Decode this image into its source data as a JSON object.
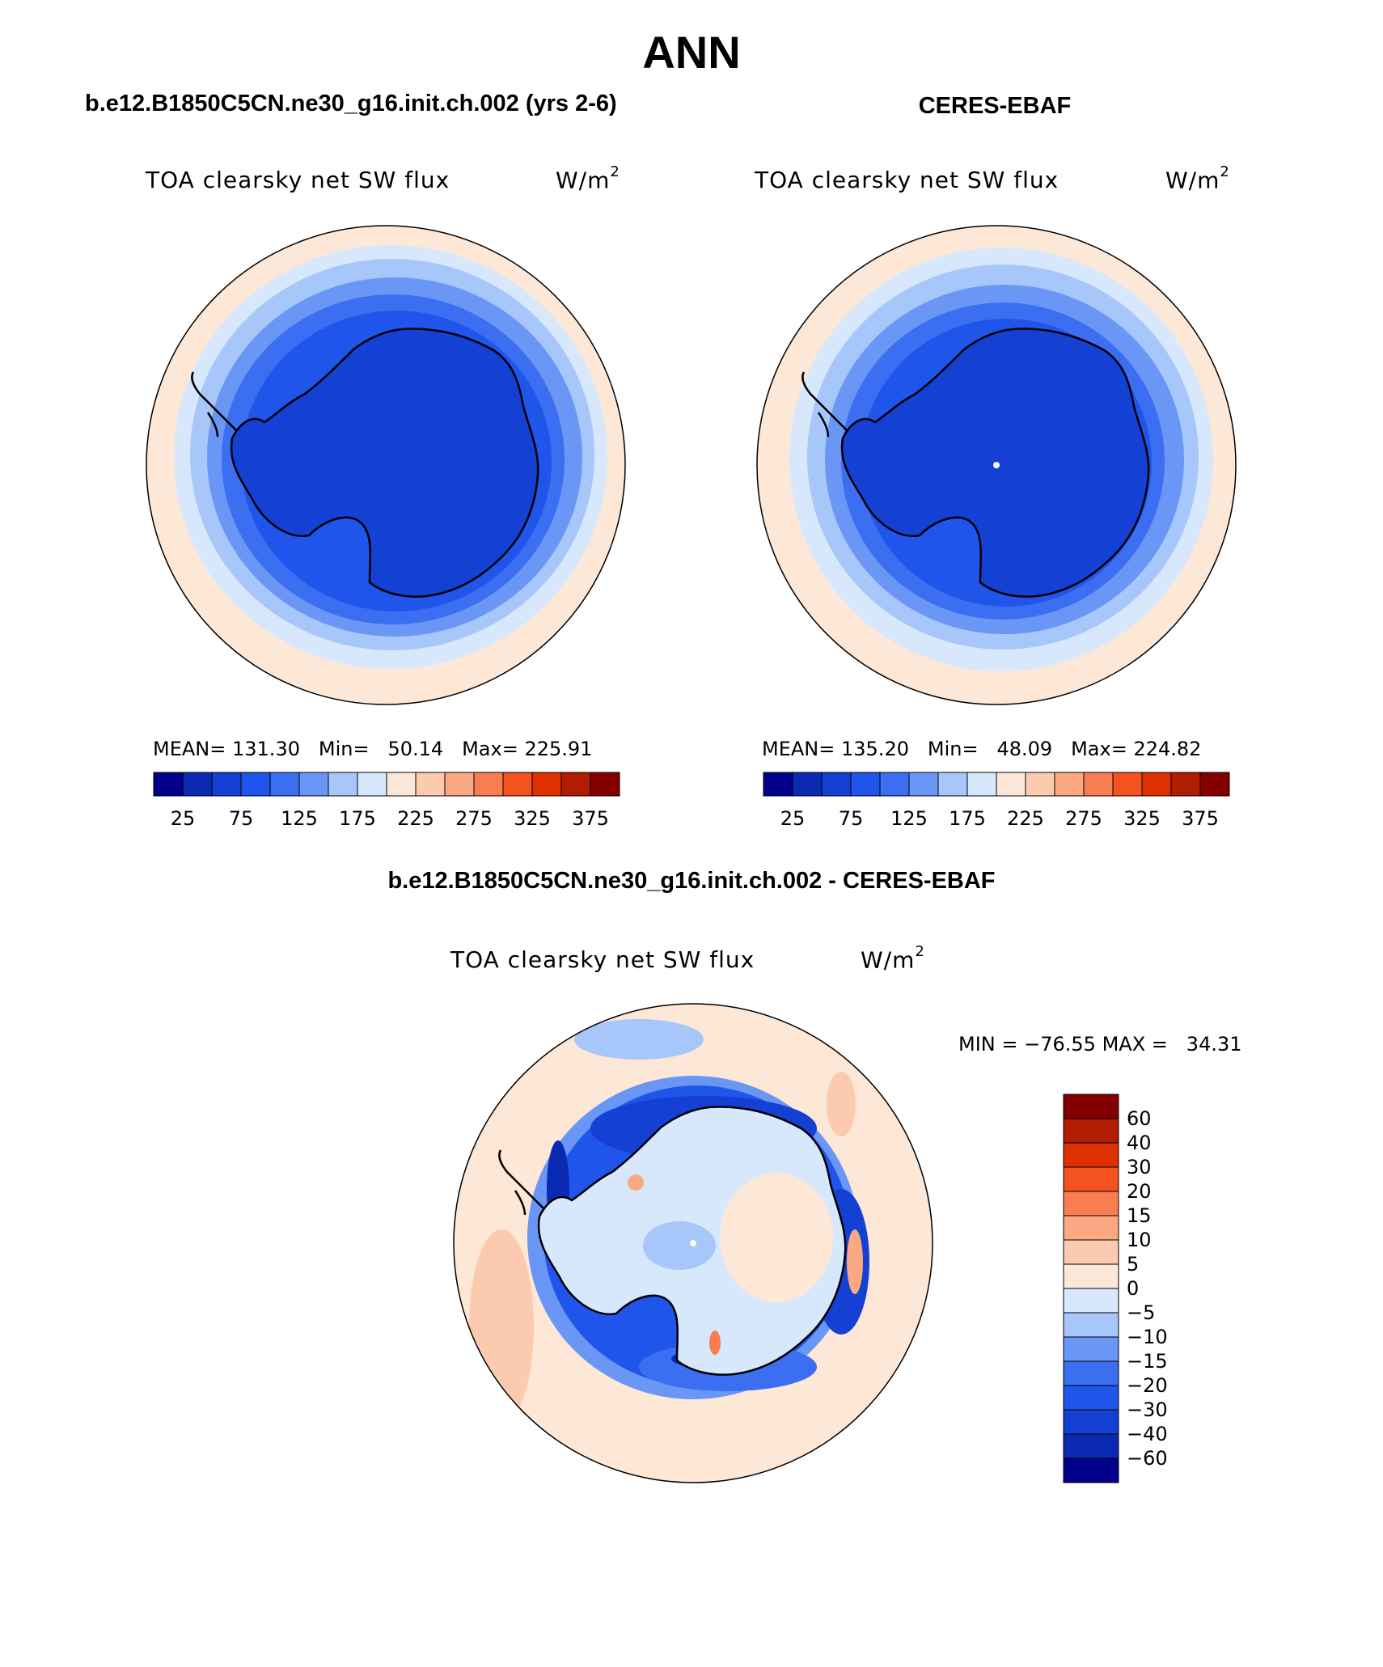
{
  "figure": {
    "season": "ANN",
    "model_case": "b.e12.B1850C5CN.ne30_g16.init.ch.002 (yrs 2-6)",
    "obs_name": "CERES-EBAF",
    "difference_title": "b.e12.B1850C5CN.ne30_g16.init.ch.002 - CERES-EBAF"
  },
  "panels": {
    "model": {
      "variable": "TOA clearsky net SW flux",
      "units_base": "W/m",
      "units_exp": "2",
      "mean_label": "MEAN=",
      "mean": "131.30",
      "min_label": "Min=",
      "min": "50.14",
      "max_label": "Max=",
      "max": "225.91"
    },
    "obs": {
      "variable": "TOA clearsky net SW flux",
      "units_base": "W/m",
      "units_exp": "2",
      "mean_label": "MEAN=",
      "mean": "135.20",
      "min_label": "Min=",
      "min": "48.09",
      "max_label": "Max=",
      "max": "224.82"
    },
    "diff": {
      "variable": "TOA clearsky net SW flux",
      "units_base": "W/m",
      "units_exp": "2",
      "min_label": "MIN =",
      "min": "−76.55",
      "max_label": "MAX =",
      "max": "34.31"
    }
  },
  "chart_data": [
    {
      "type": "heatmap",
      "projection": "south polar stereographic",
      "title": "TOA clearsky net SW flux",
      "colorbar": {
        "orientation": "horizontal",
        "colors": [
          "#00008a",
          "#0a2ab4",
          "#1440d4",
          "#1f55eb",
          "#3c6ef2",
          "#6a96f5",
          "#a7c6fa",
          "#d8e8fc",
          "#fde7d6",
          "#fccaaf",
          "#fba982",
          "#f87e52",
          "#f4531f",
          "#df3100",
          "#b11d00",
          "#840000"
        ],
        "tick_labels": [
          "25",
          "75",
          "125",
          "175",
          "225",
          "275",
          "325",
          "375"
        ]
      }
    },
    {
      "type": "heatmap",
      "projection": "south polar stereographic",
      "title": "TOA clearsky net SW flux",
      "colorbar": {
        "orientation": "horizontal",
        "colors": [
          "#00008a",
          "#0a2ab4",
          "#1440d4",
          "#1f55eb",
          "#3c6ef2",
          "#6a96f5",
          "#a7c6fa",
          "#d8e8fc",
          "#fde7d6",
          "#fccaaf",
          "#fba982",
          "#f87e52",
          "#f4531f",
          "#df3100",
          "#b11d00",
          "#840000"
        ],
        "tick_labels": [
          "25",
          "75",
          "125",
          "175",
          "225",
          "275",
          "325",
          "375"
        ]
      }
    },
    {
      "type": "heatmap",
      "projection": "south polar stereographic",
      "title": "TOA clearsky net SW flux",
      "colorbar": {
        "orientation": "vertical",
        "colors_top_to_bottom": [
          "#840000",
          "#b11d00",
          "#df3100",
          "#f4531f",
          "#f87e52",
          "#fba982",
          "#fccaaf",
          "#fde7d6",
          "#d8e8fc",
          "#a7c6fa",
          "#6a96f5",
          "#3c6ef2",
          "#1f55eb",
          "#1440d4",
          "#0a2ab4",
          "#00008a"
        ],
        "tick_labels_top_to_bottom": [
          "60",
          "40",
          "30",
          "20",
          "15",
          "10",
          "5",
          "0",
          "−5",
          "−10",
          "−15",
          "−20",
          "−30",
          "−40",
          "−60"
        ]
      }
    }
  ]
}
